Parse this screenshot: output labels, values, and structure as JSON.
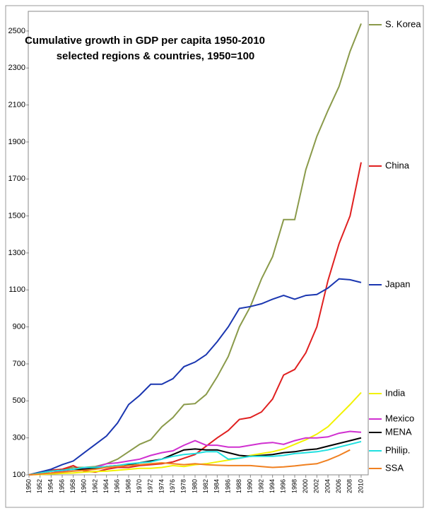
{
  "chart_data": {
    "type": "line",
    "title": "Cumulative growth in GDP per capita 1950-2010",
    "subtitle": "selected regions & countries, 1950=100",
    "x": [
      1950,
      1952,
      1954,
      1956,
      1958,
      1960,
      1962,
      1964,
      1966,
      1968,
      1970,
      1972,
      1974,
      1976,
      1978,
      1980,
      1982,
      1984,
      1986,
      1988,
      1990,
      1992,
      1994,
      1996,
      1998,
      2000,
      2002,
      2004,
      2006,
      2008,
      2010
    ],
    "xlim": [
      1950,
      2010
    ],
    "xticks": [
      1950,
      1952,
      1954,
      1956,
      1958,
      1960,
      1962,
      1964,
      1966,
      1968,
      1970,
      1972,
      1974,
      1976,
      1978,
      1980,
      1982,
      1984,
      1986,
      1988,
      1990,
      1992,
      1994,
      1996,
      1998,
      2000,
      2002,
      2004,
      2006,
      2008,
      2010
    ],
    "ylim": [
      100,
      2600
    ],
    "yticks": [
      100,
      300,
      500,
      700,
      900,
      1100,
      1300,
      1500,
      1700,
      1900,
      2100,
      2300,
      2500
    ],
    "grid": false,
    "series": [
      {
        "name": "S. Korea",
        "color": "#8a9a4a",
        "values": [
          100,
          110,
          125,
          130,
          140,
          140,
          145,
          160,
          185,
          225,
          265,
          290,
          360,
          410,
          480,
          485,
          535,
          630,
          740,
          900,
          1010,
          1160,
          1280,
          1480,
          1480,
          1750,
          1930,
          2070,
          2200,
          2390,
          2540
        ]
      },
      {
        "name": "China",
        "color": "#e02020",
        "values": [
          100,
          115,
          125,
          130,
          150,
          120,
          115,
          130,
          140,
          140,
          150,
          155,
          160,
          170,
          190,
          210,
          255,
          300,
          340,
          400,
          410,
          440,
          510,
          640,
          670,
          760,
          900,
          1150,
          1350,
          1500,
          1790
        ]
      },
      {
        "name": "Japan",
        "color": "#1a36b0",
        "values": [
          100,
          115,
          130,
          155,
          175,
          220,
          265,
          310,
          380,
          480,
          530,
          590,
          590,
          620,
          685,
          710,
          750,
          820,
          900,
          1000,
          1010,
          1025,
          1050,
          1070,
          1050,
          1070,
          1075,
          1110,
          1160,
          1155,
          1140
        ]
      },
      {
        "name": "India",
        "color": "#f2f200",
        "values": [
          100,
          102,
          105,
          108,
          110,
          115,
          118,
          120,
          125,
          130,
          135,
          135,
          140,
          150,
          145,
          155,
          160,
          170,
          180,
          190,
          205,
          215,
          225,
          240,
          265,
          290,
          320,
          360,
          420,
          480,
          545
        ]
      },
      {
        "name": "Mexico",
        "color": "#d030d0",
        "values": [
          100,
          105,
          110,
          120,
          130,
          135,
          140,
          160,
          165,
          175,
          185,
          205,
          220,
          230,
          260,
          285,
          260,
          260,
          250,
          250,
          260,
          270,
          275,
          265,
          285,
          300,
          300,
          305,
          325,
          335,
          330
        ]
      },
      {
        "name": "MENA",
        "color": "#000000",
        "values": [
          100,
          110,
          120,
          125,
          130,
          130,
          135,
          145,
          150,
          155,
          165,
          175,
          185,
          210,
          235,
          240,
          235,
          235,
          220,
          205,
          200,
          205,
          210,
          220,
          225,
          235,
          240,
          255,
          270,
          285,
          300
        ]
      },
      {
        "name": "Philip.",
        "color": "#20e0e0",
        "values": [
          100,
          110,
          120,
          125,
          130,
          140,
          140,
          145,
          150,
          160,
          165,
          170,
          185,
          200,
          210,
          215,
          225,
          225,
          185,
          190,
          200,
          200,
          200,
          205,
          215,
          220,
          225,
          235,
          250,
          265,
          280
        ]
      },
      {
        "name": "SSA",
        "color": "#f08020",
        "values": [
          100,
          105,
          110,
          115,
          120,
          125,
          130,
          140,
          145,
          150,
          155,
          160,
          165,
          160,
          155,
          160,
          155,
          152,
          150,
          150,
          150,
          145,
          140,
          143,
          148,
          155,
          160,
          180,
          205,
          235,
          null
        ]
      }
    ]
  }
}
